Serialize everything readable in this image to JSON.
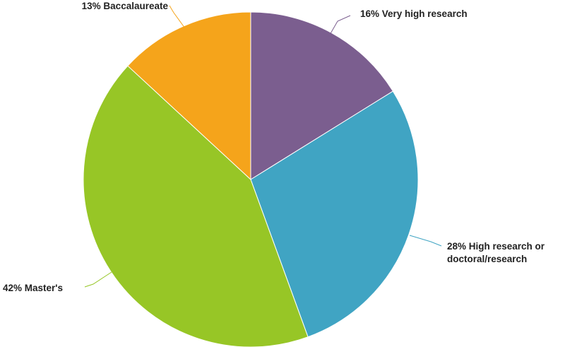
{
  "chart_data": {
    "type": "pie",
    "title": "",
    "slices": [
      {
        "label": "Very high research",
        "value": 16,
        "color": "#7b5e8f",
        "display": [
          "16% Very high research"
        ]
      },
      {
        "label": "High research or doctoral/research",
        "value": 28,
        "color": "#40a4c3",
        "display": [
          "28% High research or",
          "doctoral/research"
        ]
      },
      {
        "label": "Master's",
        "value": 42,
        "color": "#97c626",
        "display": [
          "42% Master's"
        ]
      },
      {
        "label": "Baccalaureate",
        "value": 13,
        "color": "#f5a41b",
        "display": [
          "13% Baccalaureate"
        ]
      }
    ],
    "start_angle_deg": 0,
    "direction": "clockwise",
    "legend": "none",
    "labels": "outside-with-leader-lines"
  }
}
